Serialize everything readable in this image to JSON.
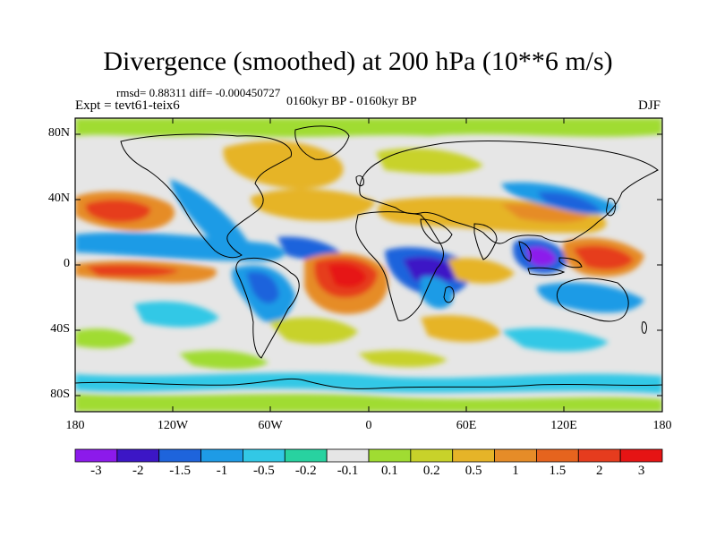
{
  "header": {
    "title": "Divergence (smoothed) at 200 hPa (10**6 m/s)",
    "stats": "rmsd= 0.88311 diff= -0.000450727",
    "experiment": "Expt = tevt61-teix6",
    "period": "0160kyr BP - 0160kyr BP",
    "season": "DJF"
  },
  "axes": {
    "y_ticks": [
      "80N",
      "40N",
      "0",
      "40S",
      "80S"
    ],
    "x_ticks": [
      "180",
      "120W",
      "60W",
      "0",
      "60E",
      "120E",
      "180"
    ]
  },
  "colorbar": {
    "colors": [
      "#8c1aeb",
      "#3c16c6",
      "#1e64dc",
      "#1e9be6",
      "#32c8e6",
      "#28d2a0",
      "#e6e6e6",
      "#a0dc32",
      "#c8d22a",
      "#e6b428",
      "#e68c28",
      "#e6641e",
      "#e63c1e",
      "#e61414"
    ],
    "labels": [
      "-3",
      "-2",
      "-1.5",
      "-1",
      "-0.5",
      "-0.2",
      "-0.1",
      "0.1",
      "0.2",
      "0.5",
      "1",
      "1.5",
      "2",
      "3"
    ]
  }
}
